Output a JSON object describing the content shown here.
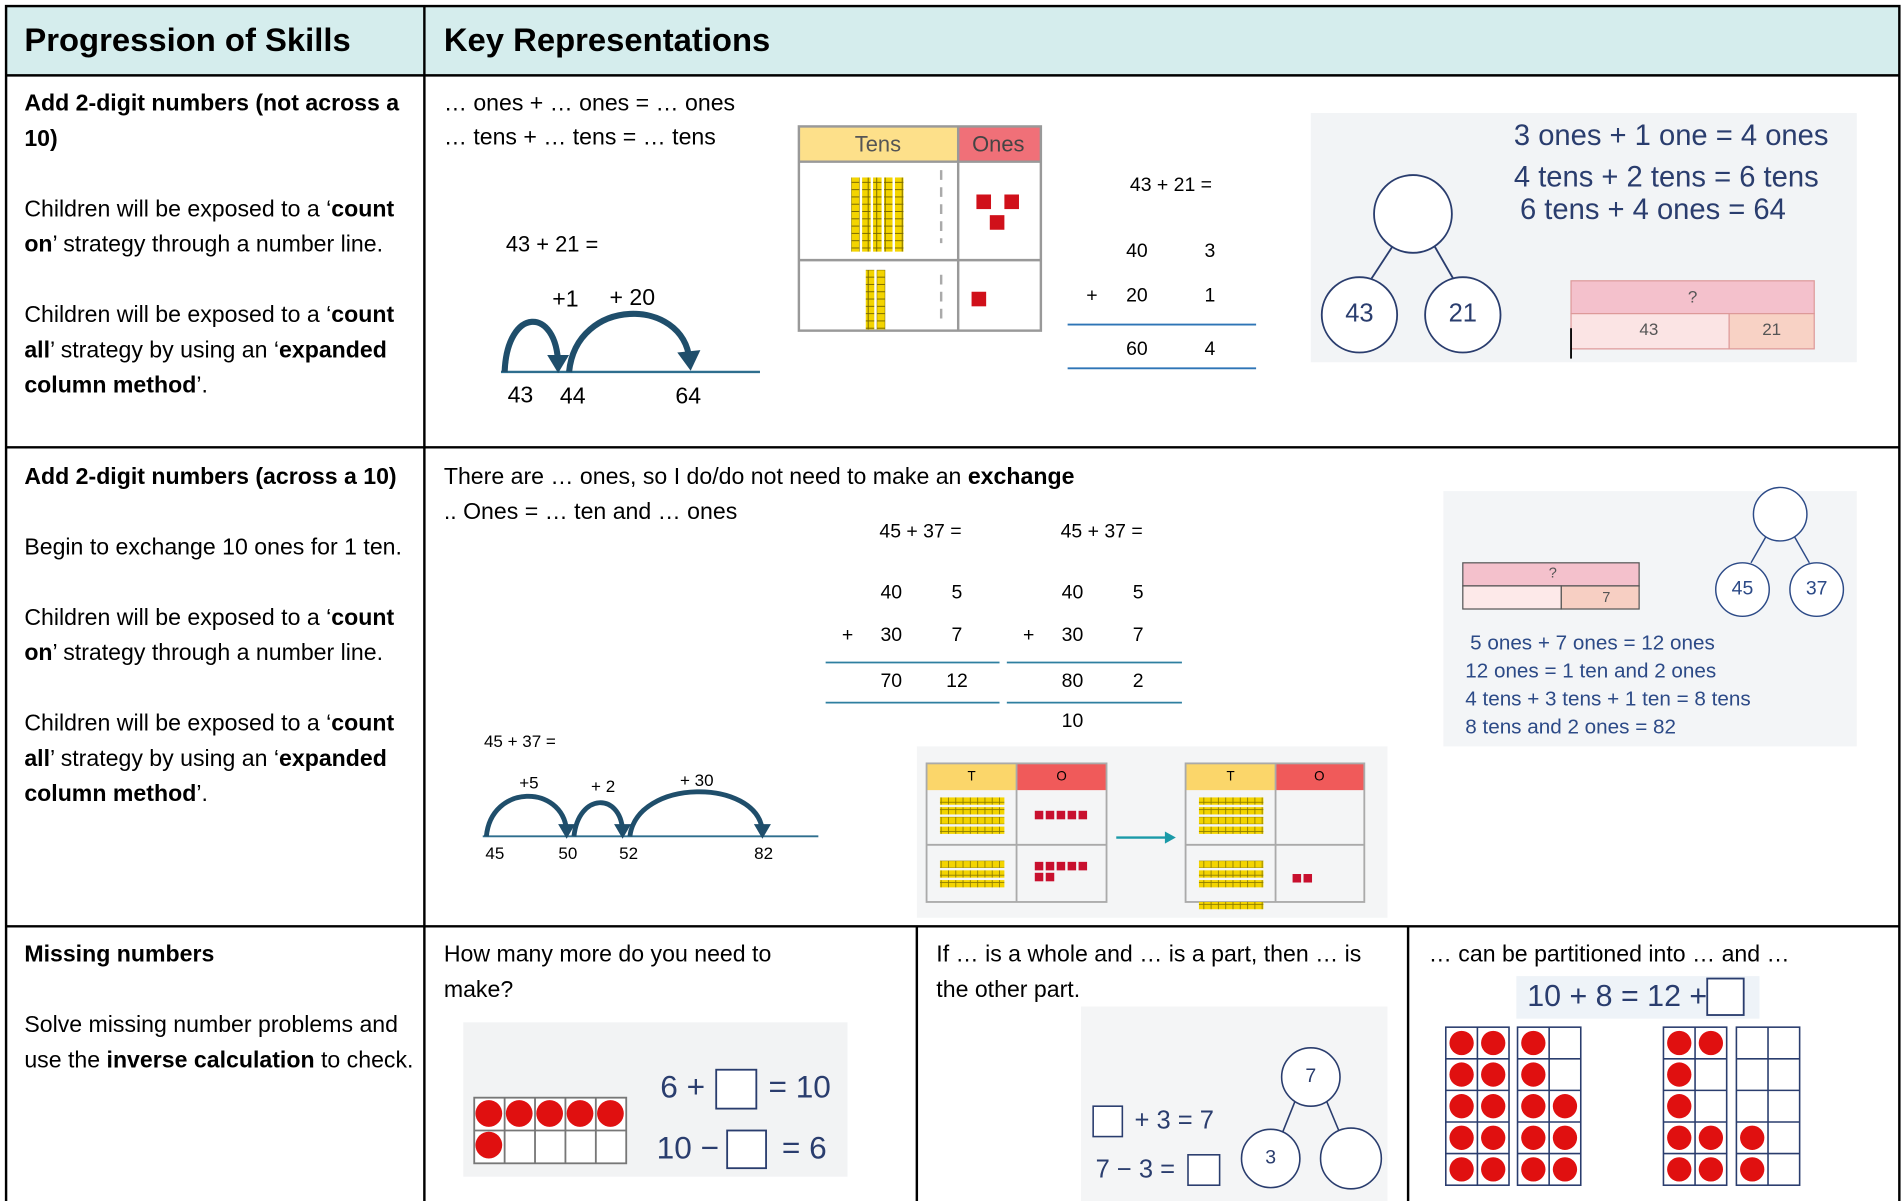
{
  "header": {
    "skills": "Progression of Skills",
    "representations": "Key Representations"
  },
  "rows": [
    {
      "skill": {
        "title": "Add 2-digit numbers (not across a 10)",
        "paragraphs": [
          [
            "Children will be exposed to a ‘",
            "count on",
            "’ strategy through a number line."
          ],
          [
            "Children will be exposed to a ‘",
            "count all",
            "’ strategy by using an ‘",
            "expanded column method",
            "’."
          ]
        ]
      },
      "stems": [
        "… ones + … ones = … ones",
        "… tens + … tens = … tens"
      ],
      "number_line": {
        "sum": "43 + 21 =",
        "jumps": [
          "+1",
          "+ 20"
        ],
        "points": [
          "43",
          "44",
          "64"
        ]
      },
      "place_value": {
        "tens": "Tens",
        "ones": "Ones"
      },
      "column": {
        "sum": "43 + 21 =",
        "row1": [
          "40",
          "3"
        ],
        "operator": "+",
        "row2": [
          "20",
          "1"
        ],
        "answer": [
          "60",
          "4"
        ]
      },
      "part_whole": {
        "sentences": [
          "3 ones + 1 one = 4 ones",
          "4 tens + 2 tens = 6 tens",
          "6 tens + 4 ones = 64"
        ],
        "parts": [
          "43",
          "21"
        ],
        "bar": {
          "whole": "?",
          "parts": [
            "43",
            "21"
          ]
        }
      }
    },
    {
      "skill": {
        "title": "Add 2-digit numbers (across a 10)",
        "paragraphs": [
          [
            "Begin to exchange 10 ones for 1 ten."
          ],
          [
            "Children will be exposed to a ‘",
            "count on",
            "’ strategy through a number line."
          ],
          [
            "Children will be exposed to a ‘",
            "count all",
            "’ strategy by using an ‘",
            "expanded column method",
            "’."
          ]
        ]
      },
      "stem": [
        "There are … ones, so I do/do not need to make an ",
        "exchange"
      ],
      "stem2": ".. Ones = … ten and … ones",
      "columns": [
        {
          "sum": "45 + 37 =",
          "row1": [
            "40",
            "5"
          ],
          "operator": "+",
          "row2": [
            "30",
            "7"
          ],
          "answer": [
            "70",
            "12"
          ]
        },
        {
          "sum": "45 + 37 =",
          "row1": [
            "40",
            "5"
          ],
          "operator": "+",
          "row2": [
            "30",
            "7"
          ],
          "answer": [
            "80",
            "2"
          ],
          "carry": "10"
        }
      ],
      "number_line": {
        "sum": "45 + 37 =",
        "jumps": [
          "+5",
          "+ 2",
          "+ 30"
        ],
        "points": [
          "45",
          "50",
          "52",
          "82"
        ]
      },
      "place_value": [
        {
          "tens": "T",
          "ones": "O"
        },
        {
          "tens": "T",
          "ones": "O"
        }
      ],
      "bar_model": {
        "whole": "?",
        "part": "7",
        "parts": [
          "45",
          "37"
        ],
        "sentences": [
          "5 ones + 7 ones = 12 ones",
          "12 ones = 1 ten and 2 ones",
          "4 tens + 3 tens + 1 ten = 8 tens",
          "8 tens and 2 ones = 82"
        ]
      }
    },
    {
      "skill": {
        "title": "Missing numbers",
        "paragraphs": [
          [
            "Solve missing number problems and use the ",
            "inverse calculation",
            " to check."
          ]
        ]
      },
      "cells": [
        {
          "prompt": "How many more do you need to make?",
          "equations": [
            [
              "6 +",
              "= 10"
            ],
            [
              "10 −",
              "= 6"
            ]
          ]
        },
        {
          "prompt": "If … is a whole and … is a part, then … is the other part.",
          "equations": [
            "+ 3  = 7",
            "7 − 3 ="
          ],
          "circles": [
            "7",
            "3"
          ]
        },
        {
          "prompt": "… can be partitioned into … and …",
          "equation": "10 + 8 = 12 +"
        }
      ]
    }
  ]
}
